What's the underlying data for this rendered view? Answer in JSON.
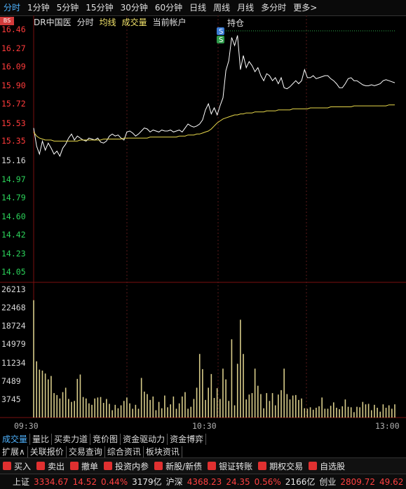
{
  "tabs": [
    "分时",
    "1分钟",
    "5分钟",
    "15分钟",
    "30分钟",
    "60分钟",
    "日线",
    "周线",
    "月线",
    "多分时",
    "更多>"
  ],
  "active_tab": 0,
  "header": {
    "name": "DR中国医",
    "fenshi": "分时",
    "avg_line": "均线",
    "volume": "成交量",
    "account": "当前帐户",
    "position": "持仓"
  },
  "bs_marker": "BS",
  "trade_markers": {
    "sell": "S",
    "buy": "S"
  },
  "price_axis": {
    "red": [
      "16.46",
      "16.27",
      "16.09",
      "15.90",
      "15.72",
      "15.53",
      "15.35"
    ],
    "white": "15.16",
    "green": [
      "14.97",
      "14.79",
      "14.60",
      "14.42",
      "14.23",
      "14.05"
    ]
  },
  "volume_axis": [
    "26213",
    "22468",
    "18724",
    "14979",
    "11234",
    "7489",
    "3745"
  ],
  "time_axis": [
    "09:30",
    "10:30",
    "13:00"
  ],
  "indicator_tabs": [
    "成交量",
    "量比",
    "买卖力道",
    "竞价图",
    "资金驱动力",
    "资金博弈"
  ],
  "info_tabs": [
    "扩展∧",
    "关联报价",
    "交易查询",
    "综合资讯",
    "板块资讯"
  ],
  "actions": [
    {
      "label": "买入",
      "icon": "buy-icon"
    },
    {
      "label": "卖出",
      "icon": "sell-icon"
    },
    {
      "label": "撤单",
      "icon": "cancel-icon"
    },
    {
      "label": "投资内参",
      "icon": "invest-icon"
    },
    {
      "label": "新股/新债",
      "icon": "ipo-icon"
    },
    {
      "label": "银证转账",
      "icon": "transfer-icon"
    },
    {
      "label": "期权交易",
      "icon": "option-icon"
    },
    {
      "label": "自选股",
      "icon": "watchlist-icon"
    }
  ],
  "status": {
    "sh_label": "上证",
    "sh_value": "3334.67",
    "sh_change": "14.52",
    "sh_pct": "0.44%",
    "sh_amount": "3179亿",
    "hs_label": "沪深",
    "hs_value": "4368.23",
    "hs_change": "24.35",
    "hs_pct": "0.56%",
    "hs_amount": "2166亿",
    "cy_label": "创业",
    "cy_value": "2809.72",
    "cy_change": "49.62"
  },
  "chart_data": {
    "type": "line",
    "ylim": [
      14.05,
      16.46
    ],
    "price": [
      15.48,
      15.3,
      15.22,
      15.35,
      15.26,
      15.33,
      15.28,
      15.22,
      15.25,
      15.2,
      15.28,
      15.32,
      15.38,
      15.42,
      15.36,
      15.4,
      15.38,
      15.36,
      15.35,
      15.38,
      15.37,
      15.36,
      15.38,
      15.34,
      15.33,
      15.35,
      15.4,
      15.42,
      15.4,
      15.41,
      15.38,
      15.36,
      15.44,
      15.45,
      15.43,
      15.4,
      15.42,
      15.45,
      15.48,
      15.47,
      15.44,
      15.46,
      15.45,
      15.44,
      15.46,
      15.45,
      15.45,
      15.46,
      15.44,
      15.45,
      15.46,
      15.44,
      15.48,
      15.52,
      15.5,
      15.49,
      15.5,
      15.52,
      15.56,
      15.66,
      15.72,
      15.62,
      15.68,
      15.61,
      15.7,
      15.78,
      16.05,
      16.15,
      16.38,
      16.3,
      16.4,
      16.06,
      16.2,
      16.08,
      16.14,
      16.1,
      16.04,
      16.08,
      16.0,
      15.95,
      16.02,
      16.0,
      15.95,
      15.98,
      15.92,
      15.98,
      15.88,
      15.87,
      15.89,
      15.92,
      15.95,
      15.92,
      15.95,
      16.06,
      15.98,
      15.98,
      16.0,
      15.97,
      15.98,
      15.99,
      16.0,
      16.0,
      15.97,
      15.95,
      15.92,
      15.88,
      15.88,
      15.92,
      15.97,
      15.98,
      15.95,
      15.95,
      15.93,
      15.91,
      15.9,
      15.9,
      15.91,
      15.9,
      15.91,
      15.92,
      15.95,
      15.96,
      15.95,
      15.94,
      15.93
    ],
    "avg": [
      15.44,
      15.4,
      15.38,
      15.37,
      15.36,
      15.36,
      15.36,
      15.35,
      15.35,
      15.35,
      15.35,
      15.35,
      15.35,
      15.35,
      15.35,
      15.35,
      15.36,
      15.36,
      15.36,
      15.36,
      15.36,
      15.36,
      15.36,
      15.36,
      15.37,
      15.37,
      15.37,
      15.37,
      15.37,
      15.37,
      15.37,
      15.38,
      15.38,
      15.38,
      15.38,
      15.38,
      15.38,
      15.38,
      15.38,
      15.38,
      15.39,
      15.39,
      15.39,
      15.39,
      15.39,
      15.39,
      15.39,
      15.39,
      15.39,
      15.39,
      15.4,
      15.4,
      15.4,
      15.41,
      15.41,
      15.41,
      15.42,
      15.42,
      15.43,
      15.44,
      15.45,
      15.47,
      15.5,
      15.53,
      15.55,
      15.57,
      15.58,
      15.59,
      15.6,
      15.61,
      15.61,
      15.62,
      15.62,
      15.63,
      15.63,
      15.63,
      15.64,
      15.64,
      15.64,
      15.64,
      15.65,
      15.65,
      15.65,
      15.65,
      15.66,
      15.66,
      15.66,
      15.66,
      15.66,
      15.67,
      15.67,
      15.67,
      15.67,
      15.67,
      15.67,
      15.68,
      15.68,
      15.68,
      15.68,
      15.68,
      15.68,
      15.68,
      15.69,
      15.69,
      15.69,
      15.69,
      15.69,
      15.69,
      15.69,
      15.69,
      15.7,
      15.7,
      15.7,
      15.7,
      15.7,
      15.7,
      15.7,
      15.7,
      15.7,
      15.7,
      15.7,
      15.7,
      15.71,
      15.71,
      15.71
    ],
    "volume_ylim": [
      0,
      26213
    ],
    "volume": [
      24000,
      11500,
      9800,
      9600,
      9000,
      7800,
      8500,
      5000,
      4600,
      3900,
      5200,
      6100,
      3800,
      3200,
      3400,
      7900,
      8800,
      4200,
      3900,
      2900,
      2600,
      3900,
      4100,
      4200,
      3000,
      3800,
      2800,
      1500,
      2600,
      1900,
      2500,
      3400,
      4100,
      2900,
      1800,
      2600,
      1800,
      8100,
      5300,
      4800,
      3600,
      4300,
      1500,
      3200,
      1900,
      4500,
      2100,
      2700,
      4300,
      1800,
      2900,
      4300,
      5200,
      1800,
      2200,
      3800,
      6100,
      13000,
      9900,
      3600,
      6100,
      8900,
      4000,
      6000,
      3800,
      10000,
      7800,
      3400,
      16000,
      2500,
      11000,
      20000,
      13000,
      3700,
      4700,
      5000,
      10000,
      6500,
      4800,
      1900,
      5000,
      3400,
      5000,
      2500,
      4700,
      5600,
      10000,
      4800,
      3700,
      4500,
      4600,
      3600,
      3900,
      1900,
      1800,
      2100,
      1600,
      2000,
      2300,
      4100,
      1800,
      1800,
      2400,
      3100,
      2000,
      1700,
      2300,
      3700,
      2200,
      2100,
      1100,
      2200,
      2100,
      3200,
      2700,
      2800,
      1500,
      2600,
      2000,
      1200,
      2700,
      2000,
      2500,
      1800,
      2700
    ]
  }
}
